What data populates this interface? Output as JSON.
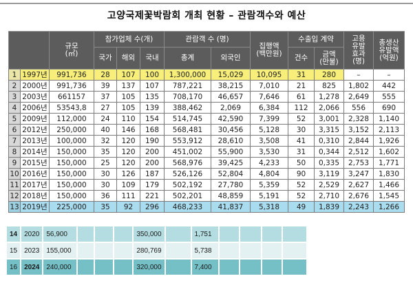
{
  "title": "고양국제꽃박람회 개최 현황 – 관람객수와 예산",
  "header": {
    "scale": "규모\n(㎡)",
    "participants_group": "참가업체 수(개)",
    "countries": "국가",
    "overseas": "해외",
    "domestic": "국내",
    "visitors_group": "관람객 수 (명)",
    "total": "총계",
    "foreign": "외국인",
    "executed": "집행액\n(백만원)",
    "trade_group": "수출입 계약",
    "count": "건수",
    "amount": "금액\n(만불)",
    "employment": "고용\n유발\n효과\n(명)",
    "production": "총생산\n유발액\n(억원)"
  },
  "rows": [
    {
      "idx": "1",
      "year": "1997년",
      "scale": "991,736",
      "countries": "28",
      "overseas": "107",
      "domestic": "100",
      "total": "1,300,000",
      "foreign": "15,029",
      "executed": "10,095",
      "count": "31",
      "amount": "280",
      "employment": "–",
      "production": "–"
    },
    {
      "idx": "2",
      "year": "2000년",
      "scale": "991,736",
      "countries": "39",
      "overseas": "137",
      "domestic": "107",
      "total": "787,221",
      "foreign": "38,215",
      "executed": "7,010",
      "count": "21",
      "amount": "825",
      "employment": "1,802",
      "production": "442"
    },
    {
      "idx": "3",
      "year": "2003년",
      "scale": "661157",
      "countries": "37",
      "overseas": "105",
      "domestic": "135",
      "total": "708,170",
      "foreign": "46,657",
      "executed": "7,646",
      "count": "61",
      "amount": "1,278",
      "employment": "2,649",
      "production": "555"
    },
    {
      "idx": "4",
      "year": "2006년",
      "scale": "53543,8",
      "countries": "27",
      "overseas": "105",
      "domestic": "139",
      "total": "388,462",
      "foreign": "2,069",
      "executed": "6,384",
      "count": "112",
      "amount": "2,066",
      "employment": "556",
      "production": "690"
    },
    {
      "idx": "5",
      "year": "2009년",
      "scale": "112,000",
      "countries": "24",
      "overseas": "110",
      "domestic": "154",
      "total": "514,745",
      "foreign": "42,590",
      "executed": "7,399",
      "count": "52",
      "amount": "3,001",
      "employment": "2,328",
      "production": "1,140"
    },
    {
      "idx": "6",
      "year": "2012년",
      "scale": "250,000",
      "countries": "40",
      "overseas": "146",
      "domestic": "168",
      "total": "568,481",
      "foreign": "30,456",
      "executed": "5,128",
      "count": "30",
      "amount": "3,315",
      "employment": "3,152",
      "production": "2,113"
    },
    {
      "idx": "7",
      "year": "2013년",
      "scale": "100,000",
      "countries": "32",
      "overseas": "120",
      "domestic": "190",
      "total": "553,912",
      "foreign": "28,610",
      "executed": "3,508",
      "count": "41",
      "amount": "0,310",
      "employment": "2,844",
      "production": "1,926"
    },
    {
      "idx": "8",
      "year": "2014년",
      "scale": "150,000",
      "countries": "35",
      "overseas": "120",
      "domestic": "200",
      "total": "451,002",
      "foreign": "55,900",
      "executed": "3,530",
      "count": "31",
      "amount": "0,344",
      "employment": "2,512",
      "production": "1,602"
    },
    {
      "idx": "9",
      "year": "2015년",
      "scale": "150,000",
      "countries": "25",
      "overseas": "120",
      "domestic": "200",
      "total": "568,976",
      "foreign": "39,425",
      "executed": "4,233",
      "count": "50",
      "amount": "0,335",
      "employment": "2,753",
      "production": "1,771"
    },
    {
      "idx": "10",
      "year": "2016년",
      "scale": "150,000",
      "countries": "30",
      "overseas": "126",
      "domestic": "187",
      "total": "526,126",
      "foreign": "52,804",
      "executed": "4,804",
      "count": "90",
      "amount": "3,119",
      "employment": "3,247",
      "production": "1,830"
    },
    {
      "idx": "11",
      "year": "2017년",
      "scale": "150,000",
      "countries": "30",
      "overseas": "109",
      "domestic": "179",
      "total": "502,192",
      "foreign": "27,780",
      "executed": "5,359",
      "count": "52",
      "amount": "2,529",
      "employment": "2,627",
      "production": "1,466"
    },
    {
      "idx": "12",
      "year": "2018년",
      "scale": "150,000",
      "countries": "36",
      "overseas": "111",
      "domestic": "221",
      "total": "502,201",
      "foreign": "48,859",
      "executed": "5,191",
      "count": "52",
      "amount": "2,710",
      "employment": "2,676",
      "production": "1,545"
    },
    {
      "idx": "13",
      "year": "2019년",
      "scale": "225,000",
      "countries": "35",
      "overseas": "92",
      "domestic": "296",
      "total": "468,233",
      "foreign": "41,837",
      "executed": "5,318",
      "count": "49",
      "amount": "1,839",
      "employment": "2,243",
      "production": "1,266"
    }
  ],
  "extra_rows": [
    {
      "idx": "14",
      "year": "2020",
      "scale": "56,900",
      "total": "350,000",
      "executed": "1,751"
    },
    {
      "idx": "15",
      "year": "2023",
      "scale": "155,000",
      "total": "280,769",
      "executed": "5,738"
    },
    {
      "idx": "16",
      "year": "2024",
      "scale": "240,000",
      "total": "320,000",
      "executed": "7,400"
    }
  ],
  "colors": {
    "header_bg": "#5c5c5c",
    "highlight_1997": "#f7ef7a",
    "highlight_2019": "#a9dcef",
    "extra_row_a": "#b3dde0",
    "extra_row_b": "#e3f1f2",
    "extra_row_c": "#75c0c7"
  }
}
